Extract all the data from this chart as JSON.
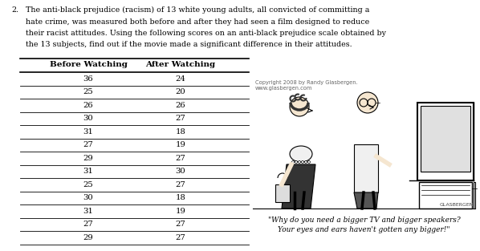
{
  "question_number": "2.",
  "question_text_lines": [
    "The anti-black prejudice (racism) of 13 white young adults, all convicted of committing a",
    "hate crime, was measured both before and after they had seen a film designed to reduce",
    "their racist attitudes. Using the following scores on an anti-black prejudice scale obtained by",
    "the 13 subjects, find out if the movie made a significant difference in their attitudes."
  ],
  "col1_header": "Before Watching",
  "col2_header": "After Watching",
  "before": [
    36,
    25,
    26,
    30,
    31,
    27,
    29,
    31,
    25,
    30,
    31,
    27,
    29
  ],
  "after": [
    24,
    20,
    26,
    27,
    18,
    19,
    27,
    30,
    27,
    18,
    19,
    27,
    27
  ],
  "copyright_text": "Copyright 2008 by Randy Glasbergen.\nwww.glasbergen.com",
  "cartoon_caption_line1": "\"Why do you need a bigger TV and bigger speakers?",
  "cartoon_caption_line2": "Your eyes and ears haven't gotten any bigger!\"",
  "signature": "GLASBERGEN",
  "bg_color": "#ffffff",
  "text_color": "#000000",
  "table_line_color": "#000000",
  "font_size_question": 6.8,
  "font_size_header": 7.5,
  "font_size_data": 7.2,
  "font_size_caption": 6.5,
  "font_size_copyright": 4.8,
  "font_size_signature": 4.5
}
